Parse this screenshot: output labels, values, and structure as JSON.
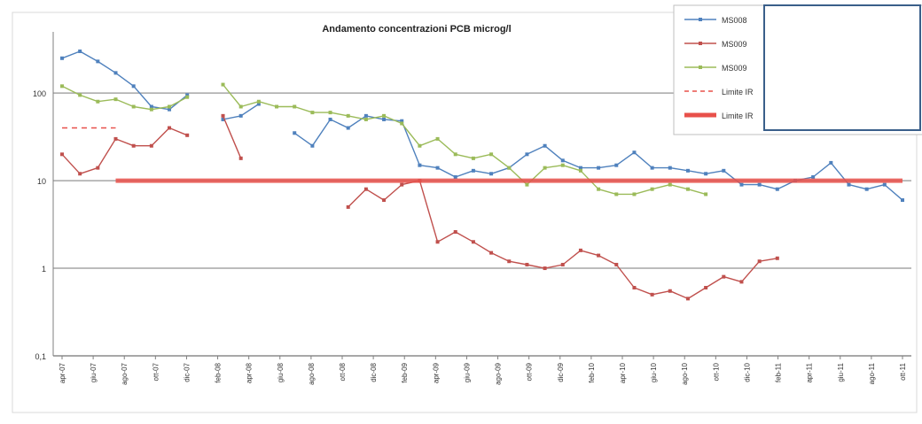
{
  "chart_data": {
    "type": "line",
    "title": "Andamento concentrazioni PCB microg/l",
    "xlabel": "",
    "ylabel": "",
    "y_scale": "log",
    "ylim": [
      0.1,
      500
    ],
    "y_ticks": [
      {
        "value": 100,
        "label": "100"
      },
      {
        "value": 10,
        "label": "10"
      },
      {
        "value": 1,
        "label": "1"
      },
      {
        "value": 0.1,
        "label": "0,1"
      }
    ],
    "grid": "horizontal",
    "legend_position": "top-right",
    "categories": [
      "apr-07",
      "giu-07",
      "ago-07",
      "ott-07",
      "dic-07",
      "feb-08",
      "apr-08",
      "giu-08",
      "ago-08",
      "ott-08",
      "dic-08",
      "feb-09",
      "apr-09",
      "giu-09",
      "ago-09",
      "ott-09",
      "dic-09",
      "feb-10",
      "apr-10",
      "giu-10",
      "ago-10",
      "ott-10",
      "dic-10",
      "feb-11",
      "apr-11",
      "giu-11",
      "ago-11",
      "ott-11"
    ],
    "series": [
      {
        "name": "MS008",
        "color": "#4f81bd",
        "style": "solid",
        "points": [
          [
            0,
            250
          ],
          [
            1,
            300
          ],
          [
            2,
            230
          ],
          [
            3,
            170
          ],
          [
            4,
            120
          ],
          [
            5,
            70
          ],
          [
            6,
            65
          ],
          [
            7,
            95
          ],
          [
            9,
            50
          ],
          [
            10,
            55
          ],
          [
            11,
            75
          ],
          [
            13,
            35
          ],
          [
            14,
            25
          ],
          [
            15,
            50
          ],
          [
            16,
            40
          ],
          [
            17,
            55
          ],
          [
            18,
            50
          ],
          [
            19,
            48
          ],
          [
            20,
            15
          ],
          [
            21,
            14
          ],
          [
            22,
            11
          ],
          [
            23,
            13
          ],
          [
            24,
            12
          ],
          [
            25,
            14
          ],
          [
            26,
            20
          ],
          [
            27,
            25
          ],
          [
            28,
            17
          ],
          [
            29,
            14
          ],
          [
            30,
            14
          ],
          [
            31,
            15
          ],
          [
            32,
            21
          ],
          [
            33,
            14
          ],
          [
            34,
            14
          ],
          [
            35,
            13
          ],
          [
            36,
            12
          ],
          [
            37,
            13
          ],
          [
            38,
            9
          ],
          [
            39,
            9
          ],
          [
            40,
            8
          ],
          [
            41,
            10
          ],
          [
            42,
            11
          ],
          [
            43,
            16
          ],
          [
            44,
            9
          ],
          [
            45,
            8
          ],
          [
            46,
            9
          ],
          [
            47,
            6
          ]
        ]
      },
      {
        "name": "MS009",
        "color": "#c0504d",
        "style": "solid",
        "points": [
          [
            0,
            20
          ],
          [
            1,
            12
          ],
          [
            2,
            14
          ],
          [
            3,
            30
          ],
          [
            4,
            25
          ],
          [
            5,
            25
          ],
          [
            6,
            40
          ],
          [
            7,
            33
          ],
          [
            9,
            55
          ],
          [
            10,
            18
          ],
          [
            16,
            5
          ],
          [
            17,
            8
          ],
          [
            18,
            6
          ],
          [
            19,
            9
          ],
          [
            20,
            10
          ],
          [
            21,
            2
          ],
          [
            22,
            2.6
          ],
          [
            23,
            2
          ],
          [
            24,
            1.5
          ],
          [
            25,
            1.2
          ],
          [
            26,
            1.1
          ],
          [
            27,
            1
          ],
          [
            28,
            1.1
          ],
          [
            29,
            1.6
          ],
          [
            30,
            1.4
          ],
          [
            31,
            1.1
          ],
          [
            32,
            0.6
          ],
          [
            33,
            0.5
          ],
          [
            34,
            0.55
          ],
          [
            35,
            0.45
          ],
          [
            36,
            0.6
          ],
          [
            37,
            0.8
          ],
          [
            38,
            0.7
          ],
          [
            39,
            1.2
          ],
          [
            40,
            1.3
          ]
        ]
      },
      {
        "name": "MS009",
        "color": "#9bbb59",
        "style": "solid",
        "points": [
          [
            0,
            120
          ],
          [
            1,
            95
          ],
          [
            2,
            80
          ],
          [
            3,
            85
          ],
          [
            4,
            70
          ],
          [
            5,
            65
          ],
          [
            6,
            70
          ],
          [
            7,
            90
          ],
          [
            9,
            125
          ],
          [
            10,
            70
          ],
          [
            11,
            80
          ],
          [
            12,
            70
          ],
          [
            13,
            70
          ],
          [
            14,
            60
          ],
          [
            15,
            60
          ],
          [
            16,
            55
          ],
          [
            17,
            50
          ],
          [
            18,
            55
          ],
          [
            19,
            45
          ],
          [
            20,
            25
          ],
          [
            21,
            30
          ],
          [
            22,
            20
          ],
          [
            23,
            18
          ],
          [
            24,
            20
          ],
          [
            25,
            14
          ],
          [
            26,
            9
          ],
          [
            27,
            14
          ],
          [
            28,
            15
          ],
          [
            29,
            13
          ],
          [
            30,
            8
          ],
          [
            31,
            7
          ],
          [
            32,
            7
          ],
          [
            33,
            8
          ],
          [
            34,
            9
          ],
          [
            35,
            8
          ],
          [
            36,
            7
          ]
        ]
      },
      {
        "name": "Limite IR",
        "color": "#e8504a",
        "style": "dashed",
        "points": [
          [
            0,
            40
          ],
          [
            3,
            40
          ]
        ]
      },
      {
        "name": "Limite IR",
        "color": "#e8504a",
        "style": "thick",
        "points": [
          [
            3,
            10
          ],
          [
            47,
            10
          ]
        ]
      }
    ]
  }
}
